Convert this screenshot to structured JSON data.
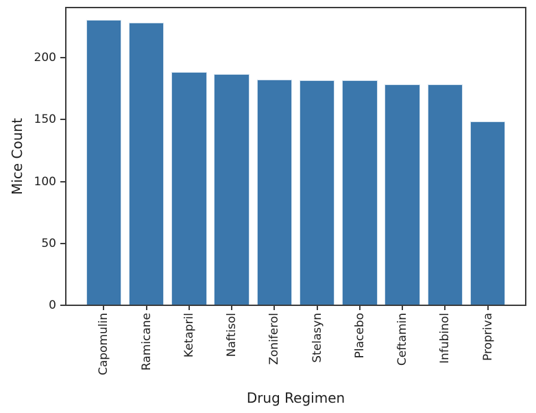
{
  "chart_data": {
    "type": "bar",
    "title": "",
    "xlabel": "Drug Regimen",
    "ylabel": "Mice Count",
    "categories": [
      "Capomulin",
      "Ramicane",
      "Ketapril",
      "Naftisol",
      "Zoniferol",
      "Stelasyn",
      "Placebo",
      "Ceftamin",
      "Infubinol",
      "Propriva"
    ],
    "values": [
      230,
      228,
      188,
      186,
      182,
      181,
      181,
      178,
      178,
      148
    ],
    "yticks": [
      0,
      50,
      100,
      150,
      200
    ],
    "ylim": [
      0,
      240.5
    ],
    "grid": false,
    "legend": "none",
    "colors": {
      "bar_fill": "#3b77ac",
      "bar_edge_halo": "#adc8e0",
      "axis_frame": "#3b3b3b",
      "text": "#1e1e1e",
      "background": "#ffffff"
    }
  }
}
